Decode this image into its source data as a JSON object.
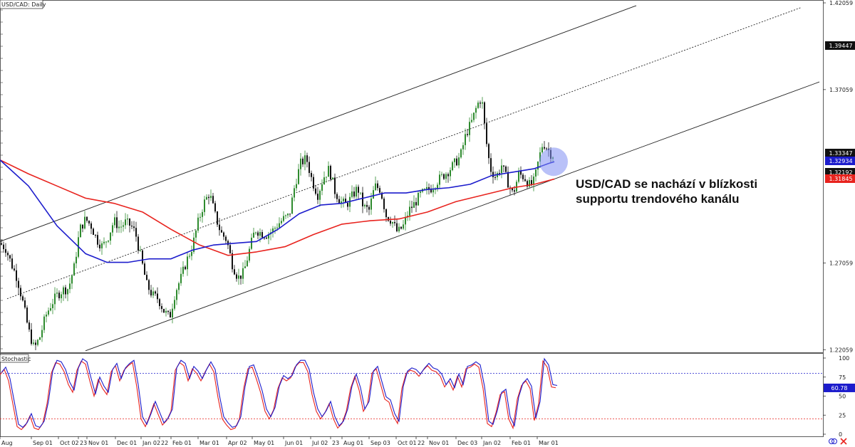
{
  "chart_data": {
    "type": "candlestick",
    "title": "USD/CAD: Daily",
    "price_axis": {
      "ticks": [
        "1.42059",
        "1.37059",
        "1.27059",
        "1.22059"
      ],
      "range": [
        1.2195,
        1.4206
      ]
    },
    "price_tags": [
      {
        "value": "1.39447",
        "kind": "horizontal-level",
        "color": "#111111",
        "text_color": "#ffffff"
      },
      {
        "value": "1.33347",
        "kind": "last-price",
        "color": "#111111",
        "text_color": "#ffffff"
      },
      {
        "value": "1.32934",
        "kind": "sma-blue",
        "color": "#1c1ccc",
        "text_color": "#ffffff"
      },
      {
        "value": "1.32192",
        "kind": "level",
        "color": "#111111",
        "text_color": "#ffffff"
      },
      {
        "value": "1.31845",
        "kind": "sma-red",
        "color": "#e8231e",
        "text_color": "#ffffff"
      }
    ],
    "x_ticks": [
      "Aug",
      "Sep 01",
      "Oct 02",
      "23",
      "Nov 01",
      "Dec 01",
      "Jan 02",
      "22",
      "Feb 01",
      "Mar 01",
      "Apr 02",
      "May 01",
      "Jun 01",
      "Jul 02",
      "23",
      "Aug 01",
      "Sep 03",
      "Oct 01",
      "22",
      "Nov 01",
      "Dec 03",
      "Jan 02",
      "Feb 01",
      "Mar 01"
    ],
    "price_path": [
      [
        0,
        1.282
      ],
      [
        8,
        1.279
      ],
      [
        16,
        1.27
      ],
      [
        24,
        1.262
      ],
      [
        32,
        1.248
      ],
      [
        40,
        1.232
      ],
      [
        48,
        1.221
      ],
      [
        56,
        1.228
      ],
      [
        64,
        1.24
      ],
      [
        72,
        1.247
      ],
      [
        80,
        1.252
      ],
      [
        88,
        1.255
      ],
      [
        96,
        1.256
      ],
      [
        104,
        1.268
      ],
      [
        112,
        1.29
      ],
      [
        120,
        1.296
      ],
      [
        128,
        1.292
      ],
      [
        136,
        1.284
      ],
      [
        144,
        1.28
      ],
      [
        152,
        1.286
      ],
      [
        160,
        1.295
      ],
      [
        168,
        1.291
      ],
      [
        176,
        1.294
      ],
      [
        184,
        1.292
      ],
      [
        190,
        1.288
      ],
      [
        198,
        1.273
      ],
      [
        206,
        1.258
      ],
      [
        214,
        1.252
      ],
      [
        222,
        1.25
      ],
      [
        230,
        1.243
      ],
      [
        238,
        1.239
      ],
      [
        246,
        1.254
      ],
      [
        254,
        1.262
      ],
      [
        262,
        1.272
      ],
      [
        270,
        1.28
      ],
      [
        278,
        1.294
      ],
      [
        286,
        1.305
      ],
      [
        294,
        1.311
      ],
      [
        302,
        1.298
      ],
      [
        310,
        1.288
      ],
      [
        318,
        1.284
      ],
      [
        326,
        1.27
      ],
      [
        334,
        1.262
      ],
      [
        342,
        1.265
      ],
      [
        350,
        1.278
      ],
      [
        358,
        1.29
      ],
      [
        366,
        1.288
      ],
      [
        374,
        1.287
      ],
      [
        382,
        1.289
      ],
      [
        390,
        1.293
      ],
      [
        398,
        1.296
      ],
      [
        406,
        1.298
      ],
      [
        414,
        1.316
      ],
      [
        422,
        1.328
      ],
      [
        430,
        1.331
      ],
      [
        438,
        1.318
      ],
      [
        446,
        1.31
      ],
      [
        454,
        1.32
      ],
      [
        462,
        1.325
      ],
      [
        470,
        1.312
      ],
      [
        478,
        1.306
      ],
      [
        486,
        1.304
      ],
      [
        494,
        1.309
      ],
      [
        502,
        1.314
      ],
      [
        510,
        1.303
      ],
      [
        518,
        1.301
      ],
      [
        526,
        1.315
      ],
      [
        534,
        1.313
      ],
      [
        542,
        1.298
      ],
      [
        550,
        1.295
      ],
      [
        558,
        1.288
      ],
      [
        566,
        1.292
      ],
      [
        574,
        1.301
      ],
      [
        582,
        1.305
      ],
      [
        590,
        1.31
      ],
      [
        598,
        1.312
      ],
      [
        606,
        1.314
      ],
      [
        614,
        1.318
      ],
      [
        622,
        1.321
      ],
      [
        630,
        1.324
      ],
      [
        638,
        1.328
      ],
      [
        646,
        1.332
      ],
      [
        654,
        1.345
      ],
      [
        662,
        1.352
      ],
      [
        670,
        1.362
      ],
      [
        676,
        1.366
      ],
      [
        682,
        1.342
      ],
      [
        688,
        1.325
      ],
      [
        696,
        1.32
      ],
      [
        704,
        1.327
      ],
      [
        712,
        1.318
      ],
      [
        720,
        1.31
      ],
      [
        728,
        1.322
      ],
      [
        736,
        1.32
      ],
      [
        744,
        1.315
      ],
      [
        750,
        1.318
      ],
      [
        756,
        1.33
      ],
      [
        762,
        1.34
      ],
      [
        768,
        1.337
      ],
      [
        774,
        1.333
      ],
      [
        778,
        1.333
      ]
    ],
    "sma_blue": [
      [
        0,
        1.33
      ],
      [
        40,
        1.315
      ],
      [
        80,
        1.292
      ],
      [
        120,
        1.276
      ],
      [
        150,
        1.271
      ],
      [
        180,
        1.271
      ],
      [
        210,
        1.273
      ],
      [
        240,
        1.273
      ],
      [
        270,
        1.278
      ],
      [
        300,
        1.281
      ],
      [
        330,
        1.282
      ],
      [
        360,
        1.283
      ],
      [
        390,
        1.29
      ],
      [
        420,
        1.299
      ],
      [
        450,
        1.304
      ],
      [
        480,
        1.305
      ],
      [
        510,
        1.308
      ],
      [
        540,
        1.311
      ],
      [
        570,
        1.311
      ],
      [
        600,
        1.313
      ],
      [
        630,
        1.314
      ],
      [
        660,
        1.316
      ],
      [
        690,
        1.321
      ],
      [
        720,
        1.323
      ],
      [
        750,
        1.325
      ],
      [
        770,
        1.328
      ],
      [
        778,
        1.329
      ]
    ],
    "sma_red": [
      [
        0,
        1.33
      ],
      [
        40,
        1.322
      ],
      [
        80,
        1.315
      ],
      [
        120,
        1.308
      ],
      [
        160,
        1.305
      ],
      [
        200,
        1.3
      ],
      [
        240,
        1.29
      ],
      [
        280,
        1.281
      ],
      [
        320,
        1.275
      ],
      [
        360,
        1.277
      ],
      [
        400,
        1.28
      ],
      [
        440,
        1.287
      ],
      [
        480,
        1.293
      ],
      [
        520,
        1.295
      ],
      [
        560,
        1.296
      ],
      [
        600,
        1.3
      ],
      [
        640,
        1.306
      ],
      [
        680,
        1.31
      ],
      [
        720,
        1.314
      ],
      [
        750,
        1.316
      ],
      [
        778,
        1.319
      ]
    ],
    "channel_upper": [
      [
        0,
        1.283
      ],
      [
        893,
        1.419
      ]
    ],
    "channel_mid": [
      [
        10,
        1.25
      ],
      [
        1125,
        1.418
      ]
    ],
    "channel_lower": [
      [
        120,
        1.22
      ],
      [
        1150,
        1.375
      ]
    ],
    "highlight_circle_center": [
      777,
      1.329
    ],
    "stochastic": {
      "label": "Stochastic",
      "ticks": [
        "100",
        "75",
        "50",
        "25",
        "0"
      ],
      "overbought": 80,
      "oversold": 20,
      "last_value": "60.78",
      "values": [
        [
          0,
          78
        ],
        [
          6,
          85
        ],
        [
          12,
          70
        ],
        [
          18,
          40
        ],
        [
          24,
          10
        ],
        [
          30,
          6
        ],
        [
          36,
          12
        ],
        [
          42,
          24
        ],
        [
          48,
          8
        ],
        [
          54,
          6
        ],
        [
          60,
          14
        ],
        [
          66,
          40
        ],
        [
          72,
          80
        ],
        [
          78,
          94
        ],
        [
          84,
          92
        ],
        [
          90,
          82
        ],
        [
          96,
          65
        ],
        [
          102,
          55
        ],
        [
          108,
          84
        ],
        [
          114,
          96
        ],
        [
          120,
          92
        ],
        [
          126,
          70
        ],
        [
          132,
          50
        ],
        [
          138,
          72
        ],
        [
          144,
          60
        ],
        [
          150,
          52
        ],
        [
          156,
          82
        ],
        [
          162,
          90
        ],
        [
          168,
          70
        ],
        [
          174,
          84
        ],
        [
          180,
          90
        ],
        [
          186,
          94
        ],
        [
          192,
          62
        ],
        [
          198,
          20
        ],
        [
          204,
          10
        ],
        [
          210,
          24
        ],
        [
          216,
          40
        ],
        [
          222,
          26
        ],
        [
          228,
          12
        ],
        [
          234,
          18
        ],
        [
          240,
          30
        ],
        [
          246,
          84
        ],
        [
          252,
          94
        ],
        [
          258,
          90
        ],
        [
          264,
          70
        ],
        [
          270,
          86
        ],
        [
          276,
          80
        ],
        [
          282,
          70
        ],
        [
          288,
          82
        ],
        [
          294,
          92
        ],
        [
          300,
          82
        ],
        [
          306,
          48
        ],
        [
          312,
          20
        ],
        [
          318,
          12
        ],
        [
          324,
          6
        ],
        [
          330,
          8
        ],
        [
          336,
          20
        ],
        [
          342,
          60
        ],
        [
          348,
          86
        ],
        [
          354,
          88
        ],
        [
          360,
          72
        ],
        [
          366,
          54
        ],
        [
          372,
          30
        ],
        [
          378,
          20
        ],
        [
          384,
          32
        ],
        [
          390,
          60
        ],
        [
          396,
          74
        ],
        [
          402,
          70
        ],
        [
          408,
          74
        ],
        [
          414,
          88
        ],
        [
          420,
          94
        ],
        [
          426,
          94
        ],
        [
          432,
          82
        ],
        [
          438,
          52
        ],
        [
          444,
          30
        ],
        [
          450,
          20
        ],
        [
          456,
          28
        ],
        [
          462,
          40
        ],
        [
          468,
          20
        ],
        [
          474,
          8
        ],
        [
          480,
          14
        ],
        [
          486,
          30
        ],
        [
          492,
          60
        ],
        [
          498,
          76
        ],
        [
          504,
          58
        ],
        [
          510,
          30
        ],
        [
          516,
          40
        ],
        [
          522,
          80
        ],
        [
          528,
          86
        ],
        [
          534,
          66
        ],
        [
          540,
          46
        ],
        [
          546,
          42
        ],
        [
          552,
          24
        ],
        [
          558,
          14
        ],
        [
          564,
          60
        ],
        [
          570,
          80
        ],
        [
          576,
          84
        ],
        [
          582,
          82
        ],
        [
          588,
          76
        ],
        [
          594,
          84
        ],
        [
          600,
          90
        ],
        [
          606,
          84
        ],
        [
          612,
          82
        ],
        [
          618,
          76
        ],
        [
          624,
          62
        ],
        [
          630,
          70
        ],
        [
          636,
          58
        ],
        [
          642,
          76
        ],
        [
          648,
          62
        ],
        [
          654,
          86
        ],
        [
          660,
          88
        ],
        [
          666,
          92
        ],
        [
          672,
          88
        ],
        [
          678,
          60
        ],
        [
          684,
          14
        ],
        [
          690,
          10
        ],
        [
          696,
          28
        ],
        [
          702,
          52
        ],
        [
          708,
          56
        ],
        [
          714,
          20
        ],
        [
          720,
          8
        ],
        [
          726,
          46
        ],
        [
          732,
          64
        ],
        [
          738,
          70
        ],
        [
          744,
          60
        ],
        [
          750,
          18
        ],
        [
          756,
          40
        ],
        [
          762,
          96
        ],
        [
          768,
          88
        ],
        [
          774,
          62
        ],
        [
          780,
          61
        ]
      ]
    }
  },
  "annotation": {
    "line1": "USD/CAD se nachází v blízkosti",
    "line2": "supportu trendového kanálu"
  },
  "colors": {
    "candle_up": "#2e8b2e",
    "candle_down": "#111111",
    "sma_blue": "#1c1ccc",
    "sma_red": "#e8231e",
    "stoch_k": "#1c1ccc",
    "stoch_d": "#e8231e",
    "circle": "#7f8ef2"
  }
}
